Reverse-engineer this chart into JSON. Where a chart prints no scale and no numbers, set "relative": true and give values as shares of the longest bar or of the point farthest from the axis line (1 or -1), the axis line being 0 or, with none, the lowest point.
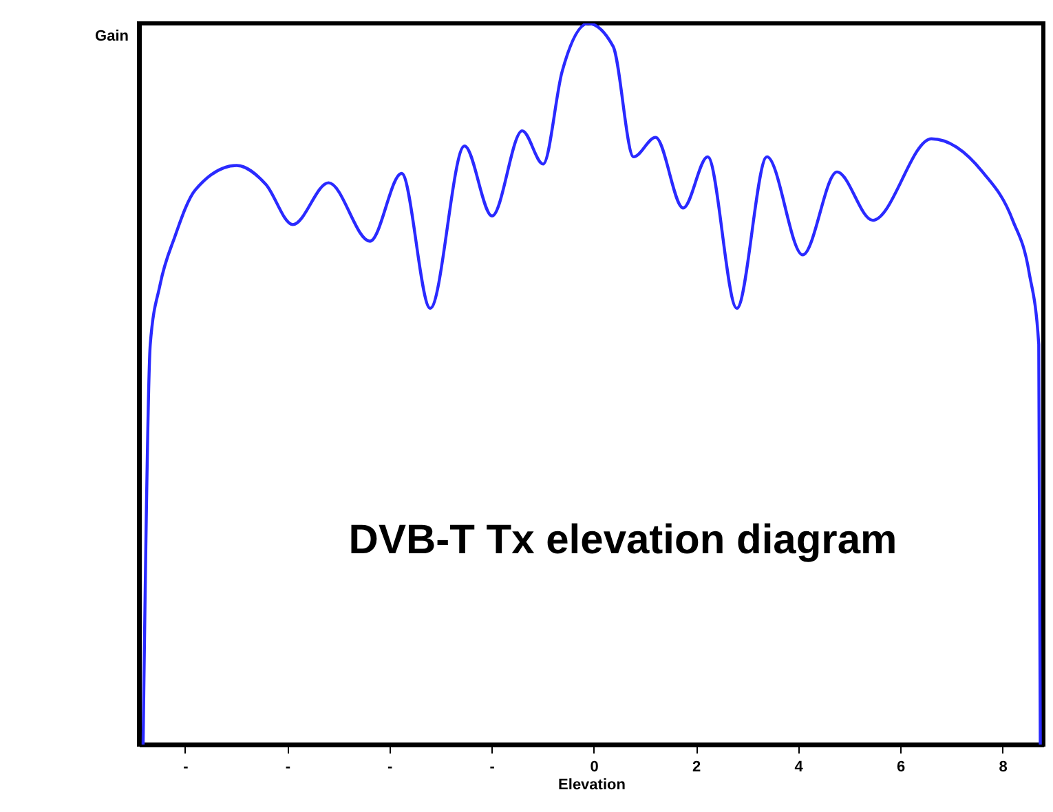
{
  "chart_data": {
    "type": "line",
    "relative": true,
    "xlabel": "Elevation",
    "ylabel": "Gain",
    "annotations": [
      "DVB-T Tx elevation diagram"
    ],
    "xlim": [
      -8.9,
      8.8
    ],
    "xticks": [
      {
        "value": -8,
        "label": "-"
      },
      {
        "value": -6,
        "label": "-"
      },
      {
        "value": -4,
        "label": "-"
      },
      {
        "value": -2,
        "label": "-"
      },
      0,
      2,
      4,
      6,
      8
    ],
    "grid": false,
    "marker": "none",
    "line_style": "solid",
    "series": [
      {
        "color": "#2a2aff",
        "x": [
          -8.82,
          -8.68,
          -8.49,
          -8.2,
          -7.8,
          -6.99,
          -6.42,
          -5.89,
          -5.19,
          -4.38,
          -3.76,
          -3.2,
          -2.53,
          -1.99,
          -1.4,
          -0.99,
          -0.62,
          -0.11,
          0.38,
          0.78,
          1.21,
          1.75,
          2.23,
          2.8,
          3.39,
          4.09,
          4.76,
          5.46,
          6.61,
          7.61,
          8.2,
          8.52,
          8.71,
          8.74
        ],
        "values": [
          0,
          0.555,
          0.637,
          0.704,
          0.769,
          0.803,
          0.777,
          0.721,
          0.779,
          0.698,
          0.792,
          0.605,
          0.83,
          0.733,
          0.851,
          0.805,
          0.933,
          1.0,
          0.968,
          0.815,
          0.842,
          0.744,
          0.815,
          0.605,
          0.815,
          0.679,
          0.794,
          0.727,
          0.84,
          0.794,
          0.727,
          0.655,
          0.555,
          0
        ]
      }
    ]
  }
}
